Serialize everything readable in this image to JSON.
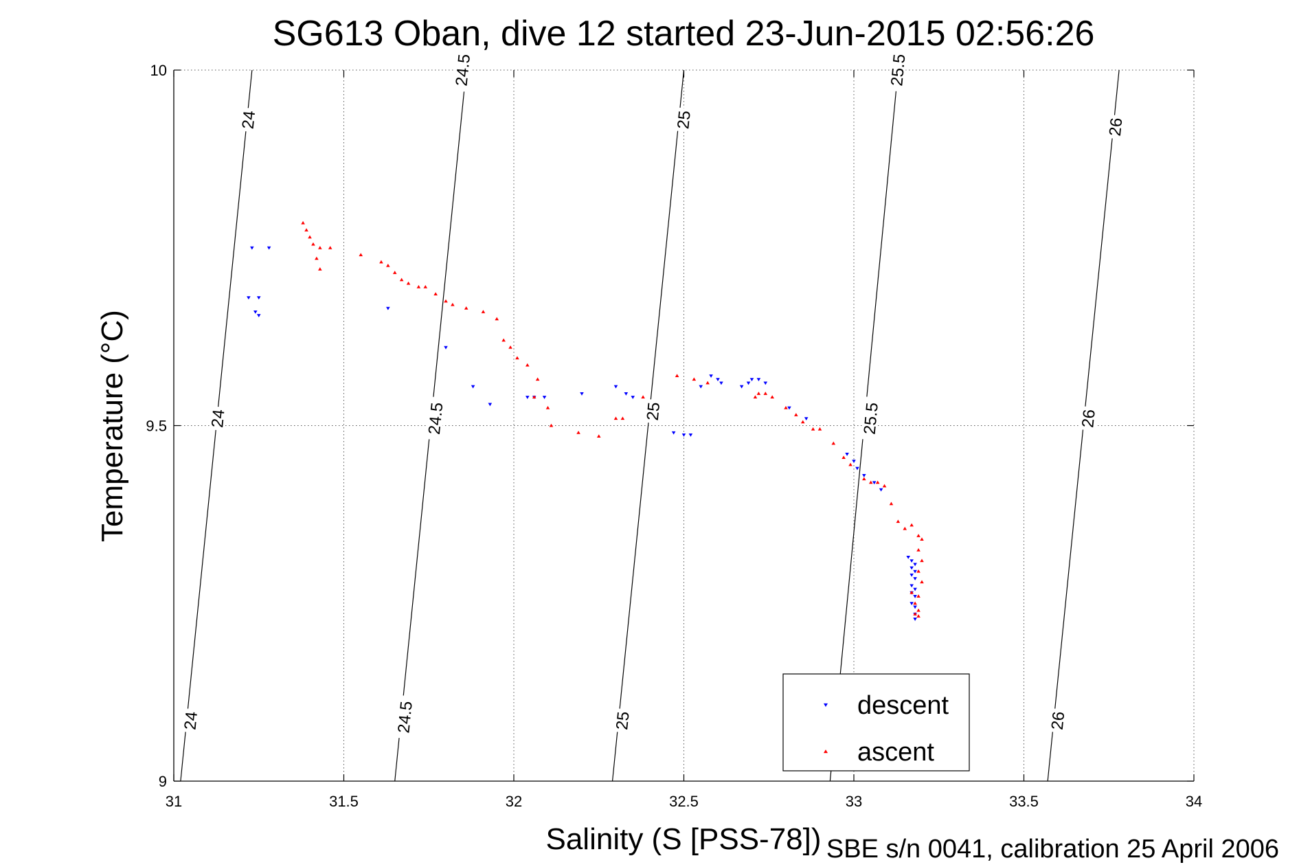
{
  "chart_data": {
    "type": "scatter",
    "title": "SG613 Oban, dive 12 started 23-Jun-2015 02:56:26",
    "xlabel": "Salinity (S [PSS-78])",
    "ylabel": "Temperature (°C)",
    "footer": "SBE s/n 0041, calibration 25 April 2006",
    "xlim": [
      31,
      34
    ],
    "ylim": [
      9,
      10
    ],
    "x_ticks": [
      {
        "value": 31,
        "label": "31"
      },
      {
        "value": 31.5,
        "label": "31.5"
      },
      {
        "value": 32,
        "label": "32"
      },
      {
        "value": 32.5,
        "label": "32.5"
      },
      {
        "value": 33,
        "label": "33"
      },
      {
        "value": 33.5,
        "label": "33.5"
      },
      {
        "value": 34,
        "label": "34"
      }
    ],
    "y_ticks": [
      {
        "value": 9,
        "label": "9"
      },
      {
        "value": 9.5,
        "label": "9.5"
      },
      {
        "value": 10,
        "label": "10"
      }
    ],
    "grid": true,
    "grid_style": "dotted",
    "legend_position": "bottom-right",
    "density_contours": [
      {
        "level": "24",
        "line": [
          [
            31.02,
            9.0
          ],
          [
            31.23,
            10.0
          ]
        ],
        "labels": [
          {
            "x": 31.05,
            "y": 9.085
          },
          {
            "x": 31.13,
            "y": 9.51
          },
          {
            "x": 31.22,
            "y": 9.93
          }
        ]
      },
      {
        "level": "24.5",
        "line": [
          [
            31.65,
            9.0
          ],
          [
            31.86,
            10.0
          ]
        ],
        "labels": [
          {
            "x": 31.68,
            "y": 9.09
          },
          {
            "x": 31.77,
            "y": 9.51
          },
          {
            "x": 31.85,
            "y": 10.0
          }
        ]
      },
      {
        "level": "25",
        "line": [
          [
            32.29,
            9.0
          ],
          [
            32.5,
            10.0
          ]
        ],
        "labels": [
          {
            "x": 32.32,
            "y": 9.085
          },
          {
            "x": 32.41,
            "y": 9.52
          },
          {
            "x": 32.5,
            "y": 9.93
          }
        ]
      },
      {
        "level": "25.5",
        "line": [
          [
            32.93,
            9.0
          ],
          [
            33.13,
            10.0
          ]
        ],
        "labels": [
          {
            "x": 33.05,
            "y": 9.51
          },
          {
            "x": 33.13,
            "y": 10.0
          }
        ]
      },
      {
        "level": "26",
        "line": [
          [
            33.57,
            9.0
          ],
          [
            33.78,
            10.0
          ]
        ],
        "labels": [
          {
            "x": 33.6,
            "y": 9.085
          },
          {
            "x": 33.69,
            "y": 9.51
          },
          {
            "x": 33.77,
            "y": 9.92
          }
        ]
      }
    ],
    "series": [
      {
        "name": "descent",
        "color": "#0000ff",
        "marker": "triangle-down",
        "points": [
          [
            31.23,
            9.75
          ],
          [
            31.28,
            9.75
          ],
          [
            31.22,
            9.68
          ],
          [
            31.25,
            9.68
          ],
          [
            31.24,
            9.66
          ],
          [
            31.25,
            9.655
          ],
          [
            31.63,
            9.665
          ],
          [
            31.8,
            9.61
          ],
          [
            31.88,
            9.555
          ],
          [
            31.93,
            9.53
          ],
          [
            32.04,
            9.54
          ],
          [
            32.06,
            9.54
          ],
          [
            32.09,
            9.54
          ],
          [
            32.2,
            9.545
          ],
          [
            32.3,
            9.555
          ],
          [
            32.33,
            9.545
          ],
          [
            32.35,
            9.54
          ],
          [
            32.47,
            9.49
          ],
          [
            32.5,
            9.487
          ],
          [
            32.52,
            9.487
          ],
          [
            32.55,
            9.555
          ],
          [
            32.58,
            9.57
          ],
          [
            32.6,
            9.565
          ],
          [
            32.61,
            9.56
          ],
          [
            32.67,
            9.555
          ],
          [
            32.69,
            9.56
          ],
          [
            32.7,
            9.565
          ],
          [
            32.72,
            9.565
          ],
          [
            32.74,
            9.56
          ],
          [
            32.81,
            9.525
          ],
          [
            32.86,
            9.51
          ],
          [
            32.98,
            9.46
          ],
          [
            33.0,
            9.45
          ],
          [
            33.01,
            9.44
          ],
          [
            33.03,
            9.43
          ],
          [
            33.06,
            9.42
          ],
          [
            33.08,
            9.41
          ],
          [
            33.16,
            9.315
          ],
          [
            33.17,
            9.31
          ],
          [
            33.18,
            9.305
          ],
          [
            33.17,
            9.3
          ],
          [
            33.18,
            9.295
          ],
          [
            33.17,
            9.29
          ],
          [
            33.18,
            9.285
          ],
          [
            33.17,
            9.275
          ],
          [
            33.18,
            9.27
          ],
          [
            33.17,
            9.265
          ],
          [
            33.18,
            9.26
          ],
          [
            33.17,
            9.25
          ],
          [
            33.18,
            9.245
          ],
          [
            33.18,
            9.235
          ],
          [
            33.18,
            9.228
          ]
        ]
      },
      {
        "name": "ascent",
        "color": "#ff0000",
        "marker": "triangle-up",
        "points": [
          [
            31.38,
            9.785
          ],
          [
            31.39,
            9.775
          ],
          [
            31.4,
            9.765
          ],
          [
            31.41,
            9.755
          ],
          [
            31.43,
            9.75
          ],
          [
            31.46,
            9.75
          ],
          [
            31.42,
            9.735
          ],
          [
            31.43,
            9.72
          ],
          [
            31.55,
            9.74
          ],
          [
            31.61,
            9.73
          ],
          [
            31.63,
            9.725
          ],
          [
            31.65,
            9.715
          ],
          [
            31.67,
            9.705
          ],
          [
            31.69,
            9.7
          ],
          [
            31.72,
            9.695
          ],
          [
            31.74,
            9.695
          ],
          [
            31.77,
            9.685
          ],
          [
            31.8,
            9.675
          ],
          [
            31.82,
            9.67
          ],
          [
            31.86,
            9.665
          ],
          [
            31.91,
            9.66
          ],
          [
            31.95,
            9.65
          ],
          [
            31.97,
            9.62
          ],
          [
            31.99,
            9.61
          ],
          [
            32.01,
            9.595
          ],
          [
            32.04,
            9.585
          ],
          [
            32.07,
            9.565
          ],
          [
            32.06,
            9.54
          ],
          [
            32.1,
            9.525
          ],
          [
            32.11,
            9.5
          ],
          [
            32.19,
            9.49
          ],
          [
            32.25,
            9.485
          ],
          [
            32.3,
            9.51
          ],
          [
            32.32,
            9.51
          ],
          [
            32.38,
            9.54
          ],
          [
            32.48,
            9.57
          ],
          [
            32.53,
            9.565
          ],
          [
            32.57,
            9.56
          ],
          [
            32.71,
            9.54
          ],
          [
            32.72,
            9.545
          ],
          [
            32.74,
            9.545
          ],
          [
            32.76,
            9.54
          ],
          [
            32.8,
            9.525
          ],
          [
            32.83,
            9.515
          ],
          [
            32.85,
            9.505
          ],
          [
            32.88,
            9.495
          ],
          [
            32.9,
            9.495
          ],
          [
            32.94,
            9.475
          ],
          [
            32.97,
            9.455
          ],
          [
            32.99,
            9.445
          ],
          [
            33.03,
            9.425
          ],
          [
            33.05,
            9.42
          ],
          [
            33.07,
            9.42
          ],
          [
            33.09,
            9.415
          ],
          [
            33.11,
            9.39
          ],
          [
            33.13,
            9.365
          ],
          [
            33.15,
            9.355
          ],
          [
            33.17,
            9.36
          ],
          [
            33.19,
            9.345
          ],
          [
            33.2,
            9.34
          ],
          [
            33.19,
            9.325
          ],
          [
            33.2,
            9.31
          ],
          [
            33.19,
            9.295
          ],
          [
            33.2,
            9.28
          ],
          [
            33.17,
            9.265
          ],
          [
            33.19,
            9.26
          ],
          [
            33.18,
            9.25
          ],
          [
            33.19,
            9.24
          ],
          [
            33.18,
            9.235
          ],
          [
            33.19,
            9.232
          ]
        ]
      }
    ]
  }
}
